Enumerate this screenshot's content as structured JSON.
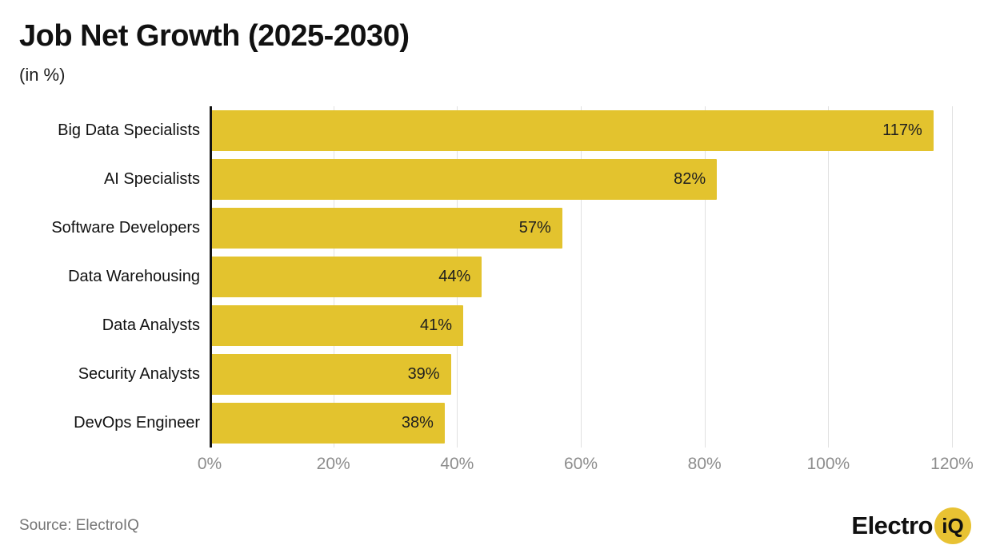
{
  "header": {
    "title": "Job Net Growth (2025-2030)",
    "subtitle": "(in %)"
  },
  "footer": {
    "source": "Source: ElectroIQ",
    "logo_primary": "Electro",
    "logo_accent": "iQ"
  },
  "colors": {
    "bar": "#e3c32e",
    "axis": "#131313",
    "grid": "#e1e1e1",
    "tick_text": "#8d8d8d",
    "logo_accent_bg": "#e8c233"
  },
  "chart_data": {
    "type": "bar",
    "orientation": "horizontal",
    "title": "Job Net Growth (2025-2030)",
    "xlabel": "",
    "ylabel": "",
    "categories": [
      "Big Data Specialists",
      "AI Specialists",
      "Software Developers",
      "Data Warehousing",
      "Data Analysts",
      "Security Analysts",
      "DevOps Engineer"
    ],
    "values": [
      117,
      82,
      57,
      44,
      41,
      39,
      38
    ],
    "value_labels": [
      "117%",
      "82%",
      "57%",
      "44%",
      "41%",
      "39%",
      "38%"
    ],
    "x_ticks": [
      0,
      20,
      40,
      60,
      80,
      100,
      120
    ],
    "x_tick_labels": [
      "0%",
      "20%",
      "40%",
      "60%",
      "80%",
      "100%",
      "120%"
    ],
    "xlim": [
      0,
      120
    ],
    "grid": true,
    "legend": "none"
  }
}
